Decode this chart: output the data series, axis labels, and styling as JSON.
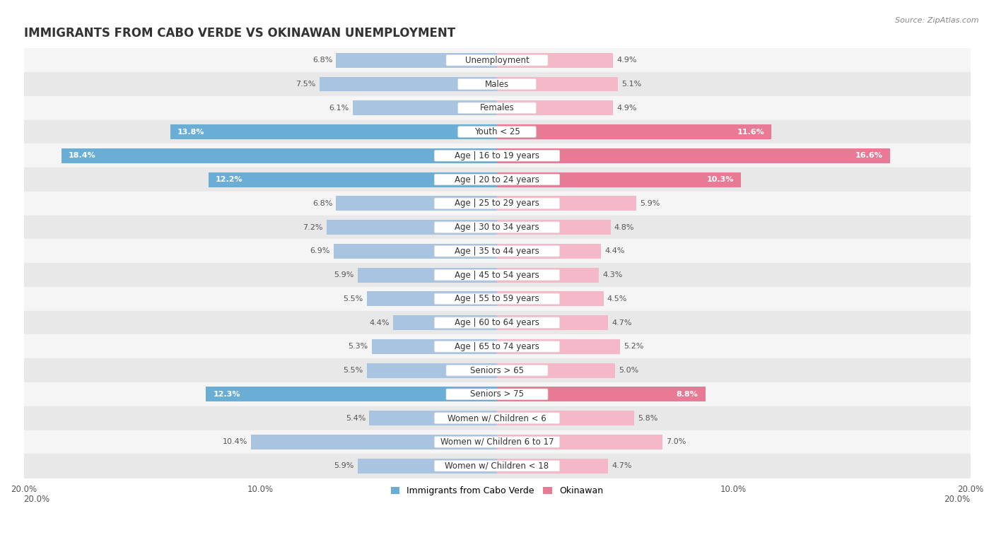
{
  "title": "IMMIGRANTS FROM CABO VERDE VS OKINAWAN UNEMPLOYMENT",
  "source": "Source: ZipAtlas.com",
  "categories": [
    "Unemployment",
    "Males",
    "Females",
    "Youth < 25",
    "Age | 16 to 19 years",
    "Age | 20 to 24 years",
    "Age | 25 to 29 years",
    "Age | 30 to 34 years",
    "Age | 35 to 44 years",
    "Age | 45 to 54 years",
    "Age | 55 to 59 years",
    "Age | 60 to 64 years",
    "Age | 65 to 74 years",
    "Seniors > 65",
    "Seniors > 75",
    "Women w/ Children < 6",
    "Women w/ Children 6 to 17",
    "Women w/ Children < 18"
  ],
  "cabo_verde": [
    6.8,
    7.5,
    6.1,
    13.8,
    18.4,
    12.2,
    6.8,
    7.2,
    6.9,
    5.9,
    5.5,
    4.4,
    5.3,
    5.5,
    12.3,
    5.4,
    10.4,
    5.9
  ],
  "okinawan": [
    4.9,
    5.1,
    4.9,
    11.6,
    16.6,
    10.3,
    5.9,
    4.8,
    4.4,
    4.3,
    4.5,
    4.7,
    5.2,
    5.0,
    8.8,
    5.8,
    7.0,
    4.7
  ],
  "cabo_verde_color_normal": "#a8c4e0",
  "cabo_verde_color_highlight": "#6aaed6",
  "okinawan_color_normal": "#f4b8c8",
  "okinawan_color_highlight": "#e87a96",
  "highlight_rows": [
    3,
    4,
    5,
    14
  ],
  "xlim": 20.0,
  "bar_height": 0.62,
  "row_bg_even": "#f5f5f5",
  "row_bg_odd": "#e8e8e8",
  "label_fontsize": 8.5,
  "value_fontsize": 8.0,
  "title_fontsize": 12
}
